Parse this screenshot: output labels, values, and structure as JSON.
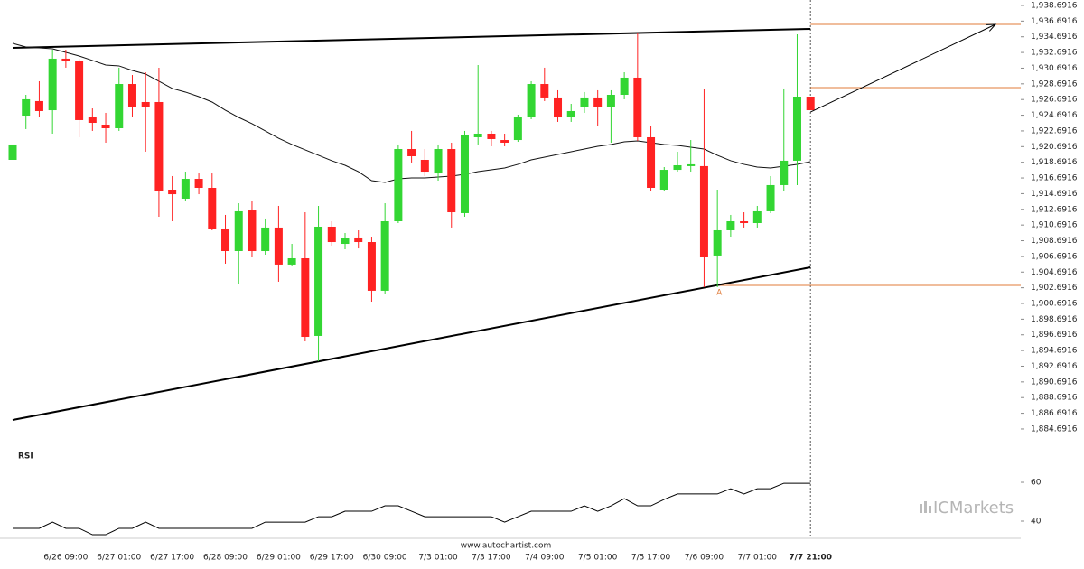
{
  "chart_data": {
    "type": "candlestick",
    "categories": [
      null,
      null,
      null,
      null,
      "6/26 09:00",
      null,
      null,
      null,
      "6/27 01:00",
      null,
      null,
      null,
      "6/27 17:00",
      null,
      null,
      null,
      "6/28 09:00",
      null,
      null,
      null,
      "6/29 01:00",
      null,
      null,
      null,
      "6/29 17:00",
      null,
      null,
      null,
      "6/30 09:00",
      null,
      null,
      null,
      "7/3 01:00",
      null,
      null,
      null,
      "7/3 17:00",
      null,
      null,
      null,
      "7/4 09:00",
      null,
      null,
      null,
      "7/5 01:00",
      null,
      null,
      null,
      "7/5 17:00",
      null,
      null,
      null,
      "7/6 09:00",
      null,
      null,
      null,
      "7/7 01:00",
      null,
      null,
      null,
      "7/7 21:00"
    ],
    "open": [
      1919.0,
      1924.64,
      1926.49,
      1925.33,
      1931.9,
      1931.55,
      1924.41,
      1923.49,
      1923.03,
      1928.67,
      1926.37,
      1926.37,
      1915.2,
      1914.05,
      1916.58,
      1915.43,
      1910.25,
      1907.37,
      1912.55,
      1907.37,
      1910.37,
      1905.65,
      1906.45,
      1896.55,
      1910.48,
      1908.29,
      1909.1,
      1908.52,
      1902.31,
      1911.17,
      1920.38,
      1919.0,
      1917.27,
      1920.38,
      1912.21,
      1921.88,
      1922.34,
      1921.53,
      1921.53,
      1924.41,
      1928.67,
      1926.95,
      1924.41,
      1925.79,
      1926.95,
      1925.79,
      1927.29,
      1929.48,
      1921.88,
      1915.2,
      1917.73,
      1918.2,
      1918.2,
      1906.8,
      1910.02,
      1911.17,
      1910.94,
      1912.44,
      1915.78,
      1918.89,
      1927.06
    ],
    "high": [
      1920.96,
      1927.29,
      1929.02,
      1933.05,
      1933.05,
      1931.9,
      1925.56,
      1924.99,
      1930.75,
      1929.82,
      1930.17,
      1930.75,
      1916.93,
      1917.5,
      1917.27,
      1917.27,
      1911.98,
      1913.47,
      1913.82,
      1911.52,
      1913.13,
      1908.29,
      1912.32,
      1913.13,
      1911.17,
      1909.67,
      1910.02,
      1909.21,
      1913.47,
      1920.96,
      1922.69,
      1920.38,
      1920.96,
      1921.19,
      1922.69,
      1931.09,
      1922.69,
      1922.34,
      1924.76,
      1929.02,
      1930.75,
      1927.87,
      1926.14,
      1927.64,
      1927.87,
      1927.87,
      1930.17,
      1935.24,
      1923.26,
      1918.08,
      1920.04,
      1921.53,
      1928.1,
      1915.2,
      1911.98,
      1912.32,
      1913.13,
      1916.93,
      1928.1,
      1935.01,
      1927.06
    ],
    "low": [
      1919.0,
      1922.92,
      1924.41,
      1922.34,
      1930.75,
      1921.88,
      1922.69,
      1921.19,
      1922.69,
      1924.41,
      1920.04,
      1911.75,
      1911.17,
      1913.82,
      1914.62,
      1910.02,
      1905.76,
      1903.11,
      1906.57,
      1906.91,
      1903.46,
      1905.42,
      1895.86,
      1893.33,
      1908.06,
      1907.6,
      1907.71,
      1900.92,
      1901.96,
      1910.94,
      1918.66,
      1916.93,
      1916.35,
      1910.37,
      1911.75,
      1920.96,
      1920.73,
      1920.73,
      1921.3,
      1924.18,
      1926.49,
      1923.84,
      1923.84,
      1924.99,
      1923.26,
      1921.19,
      1926.72,
      1921.42,
      1914.97,
      1914.97,
      1917.5,
      1917.5,
      1902.77,
      1902.77,
      1909.21,
      1910.37,
      1910.37,
      1912.21,
      1914.97,
      1915.78,
      1925.33
    ],
    "close": [
      1920.96,
      1926.72,
      1925.22,
      1931.9,
      1931.55,
      1924.07,
      1923.72,
      1923.03,
      1928.67,
      1925.79,
      1925.79,
      1914.97,
      1914.62,
      1916.58,
      1915.43,
      1910.25,
      1907.37,
      1912.44,
      1907.37,
      1910.37,
      1905.65,
      1906.45,
      1896.43,
      1910.48,
      1908.52,
      1908.98,
      1908.52,
      1902.31,
      1911.17,
      1920.38,
      1919.46,
      1917.5,
      1920.38,
      1912.32,
      1922.11,
      1922.34,
      1921.65,
      1921.19,
      1924.41,
      1928.67,
      1926.95,
      1924.41,
      1925.22,
      1926.95,
      1925.79,
      1927.29,
      1929.48,
      1921.88,
      1915.43,
      1917.73,
      1918.31,
      1918.43,
      1906.57,
      1910.02,
      1911.17,
      1910.94,
      1912.44,
      1915.78,
      1918.89,
      1927.06,
      1925.33
    ],
    "up_color": "#33d633",
    "down_color": "#ff2222",
    "moving_average": [
      1933.85,
      1933.39,
      1933.28,
      1933.16,
      1932.7,
      1932.24,
      1931.67,
      1931.09,
      1930.98,
      1930.4,
      1929.94,
      1929.02,
      1928.1,
      1927.64,
      1927.06,
      1926.37,
      1925.33,
      1924.41,
      1923.61,
      1922.69,
      1921.76,
      1920.96,
      1920.27,
      1919.58,
      1918.89,
      1918.31,
      1917.5,
      1916.35,
      1916.12,
      1916.58,
      1916.7,
      1916.7,
      1916.81,
      1916.93,
      1917.16,
      1917.5,
      1917.73,
      1917.96,
      1918.43,
      1919.0,
      1919.35,
      1919.69,
      1920.04,
      1920.38,
      1920.73,
      1920.96,
      1921.3,
      1921.42,
      1921.19,
      1920.96,
      1920.84,
      1920.61,
      1920.38,
      1919.58,
      1918.89,
      1918.43,
      1918.08,
      1917.96,
      1918.2,
      1918.43,
      1918.77
    ],
    "trend_lines": [
      {
        "start": 1933.28,
        "end": 1935.7
      },
      {
        "start": 1885.84,
        "end": 1905.3
      }
    ],
    "levels": [
      {
        "value": 1936.27
      },
      {
        "value": 1928.21
      },
      {
        "value": 1903.0,
        "from": 53
      }
    ],
    "arrow": {
      "from": 1925.1,
      "to": 1936.27
    },
    "annotation": {
      "text": "A",
      "index": 53,
      "value": 1903.0
    },
    "ylim": [
      1882.96,
      1939.38
    ],
    "yticks": [
      {
        "value": 1938.6916,
        "label": "1,938.6916"
      },
      {
        "value": 1936.6916,
        "label": "1,936.6916"
      },
      {
        "value": 1934.6916,
        "label": "1,934.6916"
      },
      {
        "value": 1932.6916,
        "label": "1,932.6916"
      },
      {
        "value": 1930.6916,
        "label": "1,930.6916"
      },
      {
        "value": 1928.6916,
        "label": "1,928.6916"
      },
      {
        "value": 1926.6916,
        "label": "1,926.6916"
      },
      {
        "value": 1924.6916,
        "label": "1,924.6916"
      },
      {
        "value": 1922.6916,
        "label": "1,922.6916"
      },
      {
        "value": 1920.6916,
        "label": "1,920.6916"
      },
      {
        "value": 1918.6916,
        "label": "1,918.6916"
      },
      {
        "value": 1916.6916,
        "label": "1,916.6916"
      },
      {
        "value": 1914.6916,
        "label": "1,914.6916"
      },
      {
        "value": 1912.6916,
        "label": "1,912.6916"
      },
      {
        "value": 1910.6916,
        "label": "1,910.6916"
      },
      {
        "value": 1908.6916,
        "label": "1,908.6916"
      },
      {
        "value": 1906.6916,
        "label": "1,906.6916"
      },
      {
        "value": 1904.6916,
        "label": "1,904.6916"
      },
      {
        "value": 1902.6916,
        "label": "1,902.6916"
      },
      {
        "value": 1900.6916,
        "label": "1,900.6916"
      },
      {
        "value": 1898.6916,
        "label": "1,898.6916"
      },
      {
        "value": 1896.6916,
        "label": "1,896.6916"
      },
      {
        "value": 1894.6916,
        "label": "1,894.6916"
      },
      {
        "value": 1892.6916,
        "label": "1,892.6916"
      },
      {
        "value": 1890.6916,
        "label": "1,890.6916"
      },
      {
        "value": 1888.6916,
        "label": "1,888.6916"
      },
      {
        "value": 1886.6916,
        "label": "1,886.6916"
      },
      {
        "value": 1884.6916,
        "label": "1,884.6916"
      }
    ],
    "rsi": {
      "title": "RSI",
      "ylim": [
        30.7,
        73.5
      ],
      "yticks": [
        40,
        60
      ],
      "values": [
        36.3,
        36.3,
        36.3,
        39.5,
        36.3,
        36.3,
        33.0,
        33.0,
        36.3,
        36.3,
        39.5,
        36.3,
        36.3,
        36.3,
        36.3,
        36.3,
        36.3,
        36.3,
        36.3,
        39.5,
        39.5,
        39.5,
        39.5,
        42.3,
        42.3,
        45.1,
        45.1,
        45.1,
        47.9,
        47.9,
        45.1,
        42.3,
        42.3,
        42.3,
        42.3,
        42.3,
        42.3,
        39.5,
        42.3,
        45.1,
        45.1,
        45.1,
        45.1,
        47.9,
        45.1,
        47.9,
        51.6,
        47.9,
        47.9,
        51.2,
        54.0,
        54.0,
        54.0,
        54.0,
        56.7,
        54.0,
        56.7,
        56.7,
        59.5,
        59.5,
        59.5
      ]
    },
    "source": "www.autochartist.com",
    "logo": {
      "prefix": "IC",
      "name": "Markets"
    }
  }
}
